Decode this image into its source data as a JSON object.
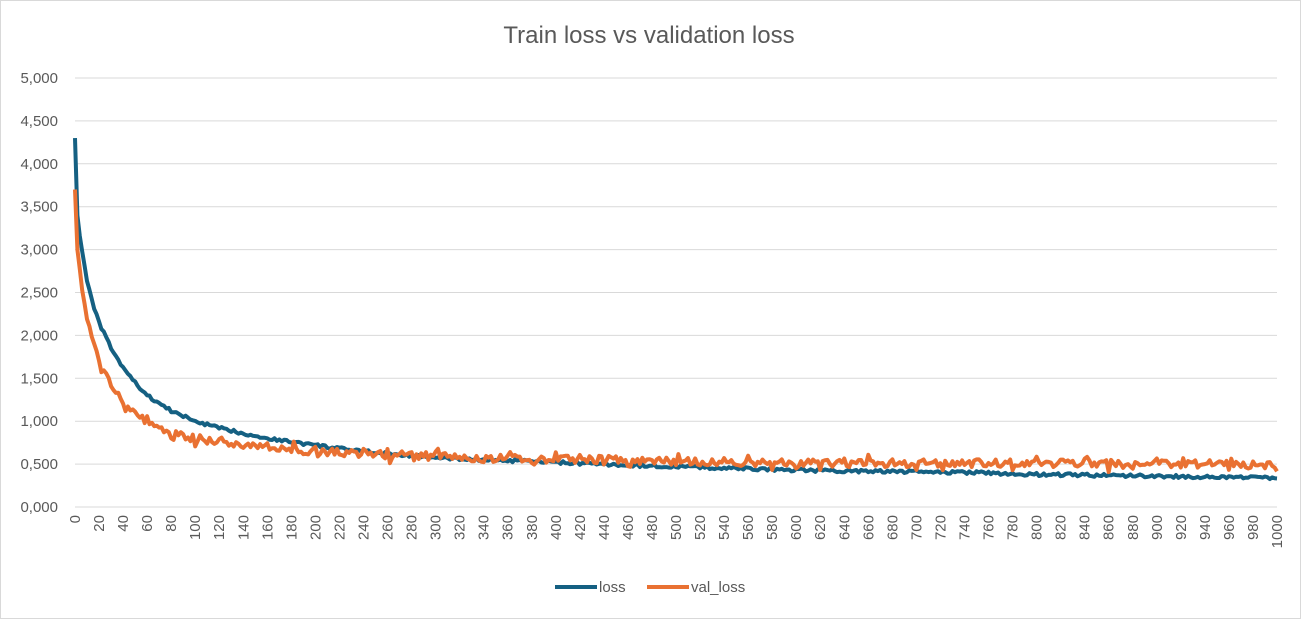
{
  "chart_data": {
    "type": "line",
    "title": "Train loss vs validation loss",
    "xlabel": "",
    "ylabel": "",
    "xlim": [
      0,
      1000
    ],
    "ylim": [
      0,
      5
    ],
    "y_ticks": [
      "0,000",
      "0,500",
      "1,000",
      "1,500",
      "2,000",
      "2,500",
      "3,000",
      "3,500",
      "4,000",
      "4,500",
      "5,000"
    ],
    "x_ticks": [
      "0",
      "20",
      "40",
      "60",
      "80",
      "100",
      "120",
      "140",
      "160",
      "180",
      "200",
      "220",
      "240",
      "260",
      "280",
      "300",
      "320",
      "340",
      "360",
      "380",
      "400",
      "420",
      "440",
      "460",
      "480",
      "500",
      "520",
      "540",
      "560",
      "580",
      "600",
      "620",
      "640",
      "660",
      "680",
      "700",
      "720",
      "740",
      "760",
      "780",
      "800",
      "820",
      "840",
      "860",
      "880",
      "900",
      "920",
      "940",
      "960",
      "980",
      "1000"
    ],
    "grid": true,
    "legend_position": "bottom",
    "series": [
      {
        "name": "loss",
        "color": "#156082",
        "x": [
          0,
          2,
          5,
          10,
          15,
          20,
          30,
          40,
          50,
          60,
          80,
          100,
          120,
          140,
          160,
          180,
          200,
          220,
          240,
          260,
          280,
          300,
          340,
          400,
          450,
          500,
          550,
          600,
          650,
          700,
          750,
          800,
          850,
          900,
          950,
          1000
        ],
        "values": [
          4.3,
          3.4,
          3.05,
          2.65,
          2.35,
          2.15,
          1.85,
          1.62,
          1.45,
          1.3,
          1.12,
          1.0,
          0.92,
          0.86,
          0.8,
          0.76,
          0.72,
          0.68,
          0.65,
          0.62,
          0.6,
          0.57,
          0.55,
          0.52,
          0.49,
          0.47,
          0.45,
          0.43,
          0.42,
          0.41,
          0.4,
          0.38,
          0.37,
          0.36,
          0.35,
          0.34
        ]
      },
      {
        "name": "val_loss",
        "color": "#E97132",
        "x": [
          0,
          2,
          5,
          10,
          15,
          20,
          30,
          40,
          50,
          60,
          80,
          100,
          120,
          140,
          160,
          180,
          200,
          220,
          240,
          260,
          280,
          300,
          340,
          400,
          450,
          500,
          550,
          600,
          650,
          700,
          750,
          800,
          850,
          900,
          950,
          1000
        ],
        "values": [
          3.7,
          3.0,
          2.6,
          2.2,
          1.9,
          1.7,
          1.45,
          1.22,
          1.1,
          0.98,
          0.85,
          0.8,
          0.76,
          0.73,
          0.7,
          0.67,
          0.65,
          0.63,
          0.62,
          0.61,
          0.6,
          0.59,
          0.57,
          0.56,
          0.55,
          0.53,
          0.52,
          0.51,
          0.51,
          0.51,
          0.51,
          0.51,
          0.5,
          0.5,
          0.5,
          0.48
        ]
      }
    ]
  }
}
